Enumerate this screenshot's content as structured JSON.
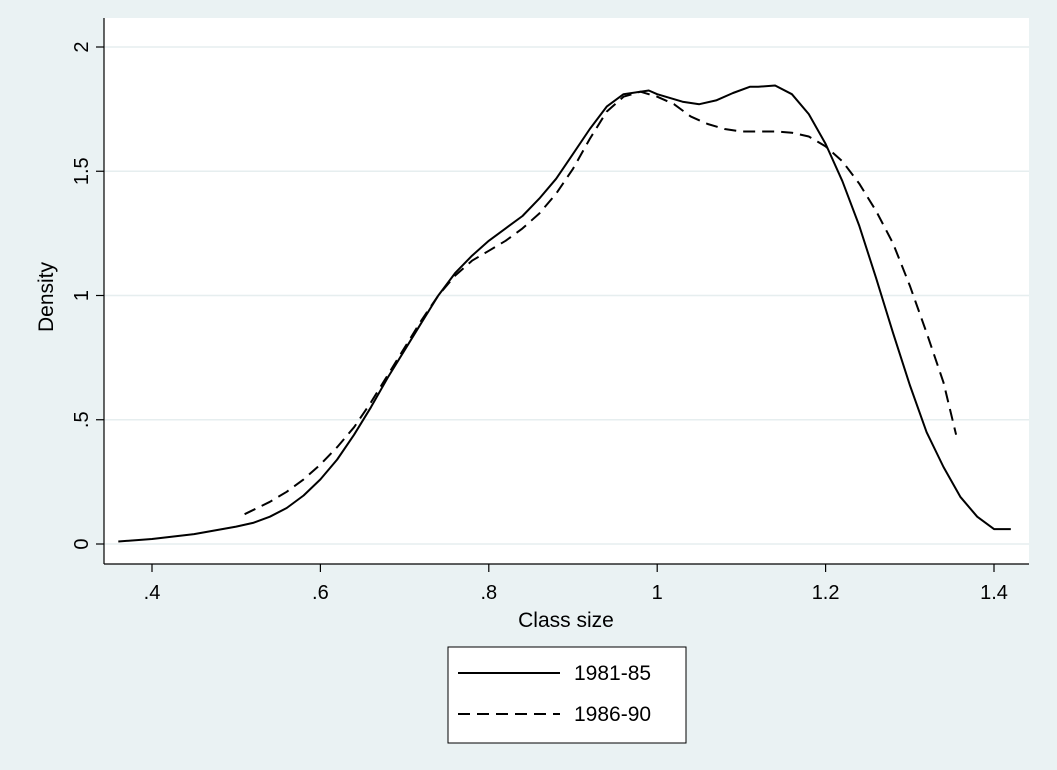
{
  "chart_data": {
    "type": "line",
    "xlabel": "Class size",
    "ylabel": "Density",
    "xlim": [
      0.36,
      1.43
    ],
    "ylim": [
      0,
      2
    ],
    "x_ticks": [
      0.4,
      0.6,
      0.8,
      1.0,
      1.2,
      1.4
    ],
    "x_tick_labels": [
      ".4",
      ".6",
      ".8",
      "1",
      "1.2",
      "1.4"
    ],
    "y_ticks": [
      0,
      0.5,
      1.0,
      1.5,
      2.0
    ],
    "y_tick_labels": [
      "0",
      ".5",
      "1",
      "1.5",
      "2"
    ],
    "grid": "horizontal",
    "legend_position": "bottom",
    "series": [
      {
        "name": "1981-85",
        "style": "solid",
        "x": [
          0.36,
          0.4,
          0.45,
          0.5,
          0.52,
          0.54,
          0.56,
          0.58,
          0.6,
          0.62,
          0.64,
          0.66,
          0.68,
          0.7,
          0.72,
          0.74,
          0.76,
          0.78,
          0.8,
          0.82,
          0.84,
          0.86,
          0.88,
          0.9,
          0.92,
          0.94,
          0.96,
          0.98,
          0.99,
          1.0,
          1.03,
          1.05,
          1.07,
          1.09,
          1.11,
          1.12,
          1.14,
          1.16,
          1.18,
          1.2,
          1.22,
          1.24,
          1.26,
          1.28,
          1.3,
          1.32,
          1.34,
          1.36,
          1.38,
          1.4,
          1.42
        ],
        "y": [
          0.01,
          0.02,
          0.04,
          0.07,
          0.085,
          0.11,
          0.145,
          0.195,
          0.26,
          0.34,
          0.44,
          0.55,
          0.67,
          0.78,
          0.89,
          1.0,
          1.09,
          1.16,
          1.22,
          1.27,
          1.32,
          1.39,
          1.47,
          1.57,
          1.67,
          1.76,
          1.81,
          1.82,
          1.825,
          1.81,
          1.78,
          1.77,
          1.785,
          1.815,
          1.84,
          1.84,
          1.845,
          1.81,
          1.73,
          1.61,
          1.46,
          1.28,
          1.07,
          0.85,
          0.64,
          0.45,
          0.31,
          0.19,
          0.11,
          0.06,
          0.06
        ]
      },
      {
        "name": "1986-90",
        "style": "dashed",
        "x": [
          0.51,
          0.54,
          0.56,
          0.58,
          0.6,
          0.62,
          0.64,
          0.66,
          0.68,
          0.7,
          0.72,
          0.74,
          0.76,
          0.78,
          0.8,
          0.82,
          0.84,
          0.86,
          0.88,
          0.9,
          0.92,
          0.94,
          0.96,
          0.98,
          1.0,
          1.02,
          1.04,
          1.06,
          1.08,
          1.1,
          1.12,
          1.14,
          1.16,
          1.18,
          1.2,
          1.22,
          1.24,
          1.26,
          1.28,
          1.3,
          1.32,
          1.34,
          1.355
        ],
        "y": [
          0.12,
          0.17,
          0.21,
          0.26,
          0.32,
          0.39,
          0.47,
          0.57,
          0.68,
          0.79,
          0.9,
          1.0,
          1.08,
          1.14,
          1.18,
          1.22,
          1.27,
          1.33,
          1.41,
          1.51,
          1.63,
          1.74,
          1.8,
          1.82,
          1.8,
          1.77,
          1.72,
          1.69,
          1.67,
          1.66,
          1.66,
          1.66,
          1.655,
          1.64,
          1.6,
          1.54,
          1.45,
          1.34,
          1.21,
          1.04,
          0.85,
          0.65,
          0.44
        ]
      }
    ]
  }
}
